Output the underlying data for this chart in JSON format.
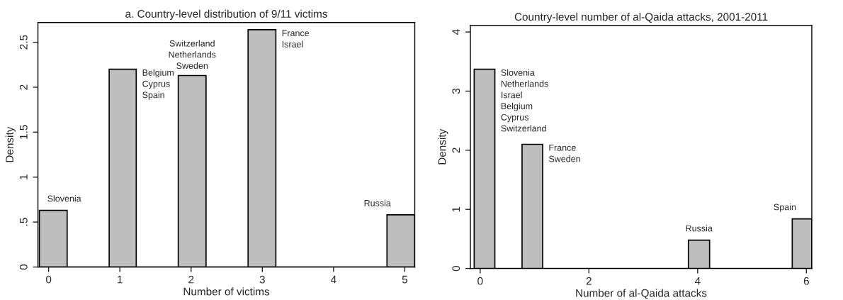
{
  "chart_data": [
    {
      "type": "histogram",
      "title": "a. Country-level distribution of 9/11 victims",
      "xlabel": "Number of victims",
      "ylabel": "Density",
      "color": "#bebebe",
      "bins": [
        -0.13,
        0.26,
        0.85,
        1.23,
        1.82,
        2.21,
        2.8,
        3.19,
        4.75,
        5.14
      ],
      "values": [
        0.63,
        0,
        2.2,
        0,
        2.13,
        0,
        2.64,
        0,
        0.58
      ],
      "xlim": [
        -0.15,
        5.14
      ],
      "ylim": [
        0,
        2.72
      ],
      "xticks": [
        0,
        1,
        2,
        3,
        4,
        5
      ],
      "yticks": [
        0,
        {
          "value": 0.5,
          "label": ".5"
        },
        1,
        1.5,
        2,
        2.5
      ],
      "annotations": [
        {
          "text": "Slovenia",
          "x": 0.065,
          "y": 0.63
        },
        {
          "text": "Belgium\nCyprus\nSpain",
          "x": 1.04,
          "y": 2.2
        },
        {
          "text": "Switzerland\nNetherlands\nSweden",
          "x": 2.015,
          "y": 2.13
        },
        {
          "text": "France\nIsrael",
          "x": 2.995,
          "y": 2.64
        },
        {
          "text": "Russia",
          "x": 4.945,
          "y": 0.58
        }
      ]
    },
    {
      "type": "histogram",
      "title": "Country-level number of al-Qaida attacks, 2001-2011",
      "xlabel": "Number of al-Qaida attacks",
      "ylabel": "Density",
      "color": "#bebebe",
      "bins": [
        -0.11,
        0.27,
        0.77,
        1.15,
        3.83,
        4.22,
        5.74,
        6.1
      ],
      "values": [
        3.37,
        0,
        2.1,
        0,
        0.48,
        0,
        0.84
      ],
      "xlim": [
        -0.18,
        6.1
      ],
      "ylim": [
        0,
        4.11
      ],
      "xticks": [
        0,
        2,
        4,
        6
      ],
      "yticks": [
        0,
        1,
        2,
        3,
        4
      ],
      "annotations": [
        {
          "text": "Slovenia\nNetherlands\nIsrael\nBelgium\nCyprus\nSwitzerland",
          "x": 0.08,
          "y": 3.37
        },
        {
          "text": "France\nSweden",
          "x": 0.96,
          "y": 2.1
        },
        {
          "text": "Russia",
          "x": 4.025,
          "y": 0.48
        },
        {
          "text": "Spain",
          "x": 5.92,
          "y": 0.84
        }
      ]
    }
  ]
}
